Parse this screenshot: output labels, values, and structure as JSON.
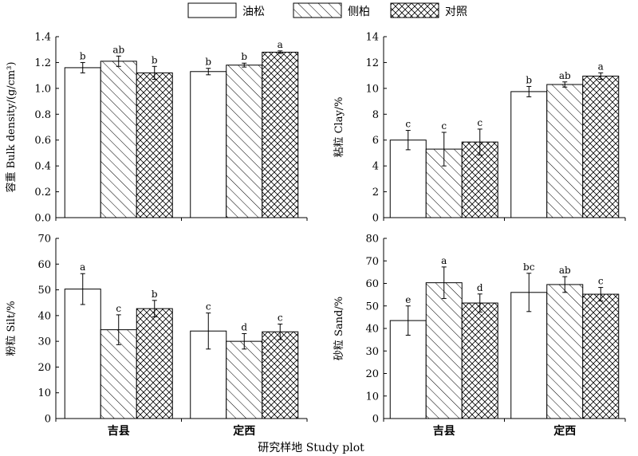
{
  "legend": {
    "items": [
      {
        "label": "油松",
        "pattern": "none"
      },
      {
        "label": "侧柏",
        "pattern": "diagonal"
      },
      {
        "label": "对照",
        "pattern": "crosshatch"
      }
    ]
  },
  "x_axis_title": "研究样地 Study plot",
  "chart_data": [
    {
      "type": "bar",
      "panel": "top-left",
      "categories": [
        "吉县",
        "定西"
      ],
      "series": [
        {
          "name": "油松",
          "values": [
            1.16,
            1.13
          ],
          "errors": [
            0.04,
            0.025
          ],
          "letters": [
            "b",
            "b"
          ]
        },
        {
          "name": "侧柏",
          "values": [
            1.21,
            1.18
          ],
          "errors": [
            0.04,
            0.015
          ],
          "letters": [
            "ab",
            "b"
          ]
        },
        {
          "name": "对照",
          "values": [
            1.12,
            1.28
          ],
          "errors": [
            0.05,
            0.01
          ],
          "letters": [
            "b",
            "a"
          ]
        }
      ],
      "ylabel": "容重 Bulk density/(g/cm³)",
      "ylim": [
        0,
        1.4
      ],
      "yticks": [
        "0.0",
        "0.2",
        "0.4",
        "0.6",
        "0.8",
        "1.0",
        "1.2",
        "1.4"
      ]
    },
    {
      "type": "bar",
      "panel": "top-right",
      "categories": [
        "吉县",
        "定西"
      ],
      "series": [
        {
          "name": "油松",
          "values": [
            6.0,
            9.75
          ],
          "errors": [
            0.75,
            0.4
          ],
          "letters": [
            "c",
            "b"
          ]
        },
        {
          "name": "侧柏",
          "values": [
            5.3,
            10.3
          ],
          "errors": [
            1.3,
            0.2
          ],
          "letters": [
            "c",
            "ab"
          ]
        },
        {
          "name": "对照",
          "values": [
            5.85,
            10.95
          ],
          "errors": [
            1.0,
            0.25
          ],
          "letters": [
            "c",
            "a"
          ]
        }
      ],
      "ylabel": "粘粒 Clay/%",
      "ylim": [
        0,
        14
      ],
      "yticks": [
        "0",
        "2",
        "4",
        "6",
        "8",
        "10",
        "12",
        "14"
      ]
    },
    {
      "type": "bar",
      "panel": "bottom-left",
      "categories": [
        "吉县",
        "定西"
      ],
      "series": [
        {
          "name": "油松",
          "values": [
            50.3,
            34.0
          ],
          "errors": [
            6.0,
            7.0
          ],
          "letters": [
            "a",
            "c"
          ]
        },
        {
          "name": "侧柏",
          "values": [
            34.5,
            30.0
          ],
          "errors": [
            5.8,
            3.0
          ],
          "letters": [
            "c",
            "d"
          ]
        },
        {
          "name": "对照",
          "values": [
            42.7,
            33.7
          ],
          "errors": [
            3.2,
            3.0
          ],
          "letters": [
            "b",
            "c"
          ]
        }
      ],
      "ylabel": "粉粒 Silt/%",
      "ylim": [
        0,
        70
      ],
      "yticks": [
        "0",
        "10",
        "20",
        "30",
        "40",
        "50",
        "60",
        "70"
      ]
    },
    {
      "type": "bar",
      "panel": "bottom-right",
      "categories": [
        "吉县",
        "定西"
      ],
      "series": [
        {
          "name": "油松",
          "values": [
            43.5,
            56.0
          ],
          "errors": [
            6.5,
            8.5
          ],
          "letters": [
            "e",
            "bc"
          ]
        },
        {
          "name": "侧柏",
          "values": [
            60.3,
            59.5
          ],
          "errors": [
            7.0,
            3.5
          ],
          "letters": [
            "a",
            "ab"
          ]
        },
        {
          "name": "对照",
          "values": [
            51.3,
            55.2
          ],
          "errors": [
            4.0,
            3.0
          ],
          "letters": [
            "d",
            "c"
          ]
        }
      ],
      "ylabel": "砂粒 Sand/%",
      "ylim": [
        0,
        80
      ],
      "yticks": [
        "0",
        "10",
        "20",
        "30",
        "40",
        "50",
        "60",
        "70",
        "80"
      ]
    }
  ]
}
